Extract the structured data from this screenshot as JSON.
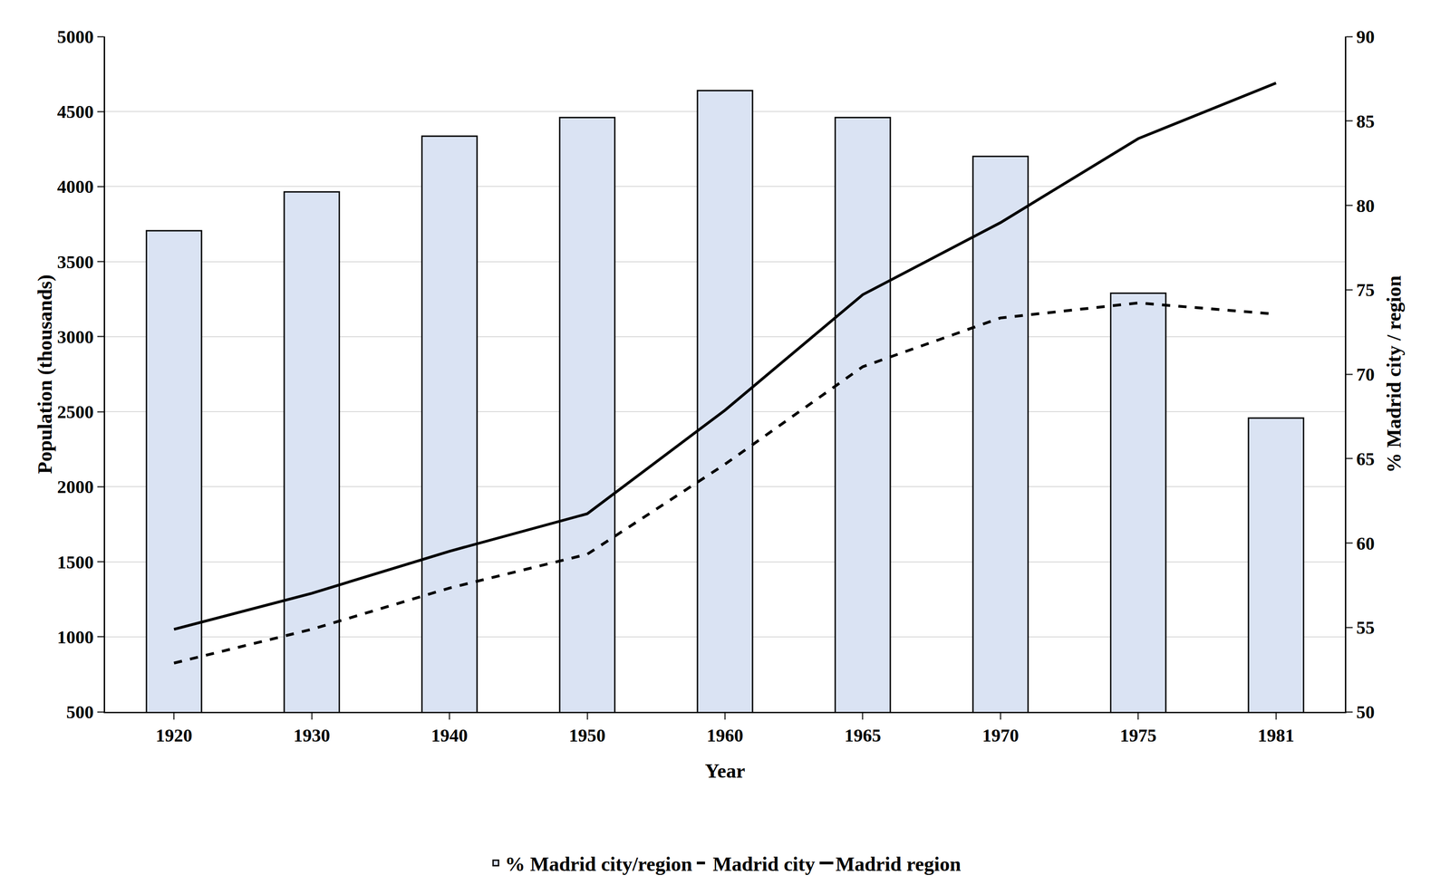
{
  "chart_data": {
    "type": "bar",
    "x_label": "Year",
    "y_label": "Population (thousands)",
    "y2_label": "% Madrid city / region",
    "categories": [
      "1920",
      "1930",
      "1940",
      "1950",
      "1960",
      "1965",
      "1970",
      "1975",
      "1981"
    ],
    "series": [
      {
        "name": "% Madrid city/region",
        "type": "bar",
        "axis": "y2",
        "color": "#dae3f3",
        "values": [
          78.5,
          80.8,
          84.1,
          85.2,
          86.8,
          85.2,
          82.9,
          74.8,
          67.4
        ]
      },
      {
        "name": "Madrid city",
        "type": "line",
        "line_style": "dashed",
        "color": "#000000",
        "values": [
          825,
          1050,
          1325,
          1550,
          2150,
          2800,
          3125,
          3225,
          3150
        ]
      },
      {
        "name": "Madrid region",
        "type": "line",
        "line_style": "solid",
        "color": "#000000",
        "values": [
          1050,
          1290,
          1570,
          1820,
          2510,
          3280,
          3760,
          4320,
          4690
        ]
      }
    ],
    "ylim": [
      500,
      5000
    ],
    "yticks": [
      500,
      1000,
      1500,
      2000,
      2500,
      3000,
      3500,
      4000,
      4500,
      5000
    ],
    "y2lim": [
      50,
      90
    ],
    "y2ticks": [
      50,
      55,
      60,
      65,
      70,
      75,
      80,
      85,
      90
    ],
    "grid": true,
    "legend": "bottom"
  }
}
